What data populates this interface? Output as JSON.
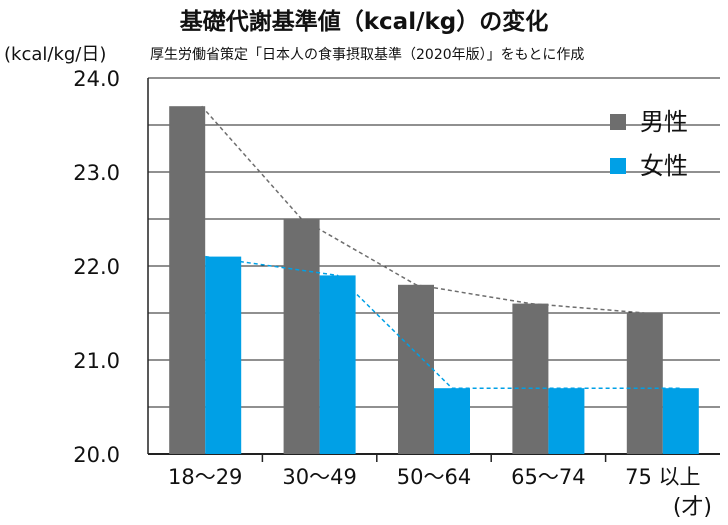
{
  "title": "基礎代謝基準値（kcal/kg）の変化",
  "source_note": "厚生労働省策定「日本人の食事摂取基準（2020年版）」をもとに作成",
  "colors": {
    "male": "#6e6e6e",
    "female": "#00a0e6",
    "grid": "#222222",
    "male_trend": "#6e6e6e",
    "female_trend": "#00a0e6"
  },
  "chart_data": {
    "type": "bar",
    "ylabel": "(kcal/kg/日)",
    "xlabel": "(才)",
    "categories": [
      "18〜29",
      "30〜49",
      "50〜64",
      "65〜74",
      "75 以上"
    ],
    "series": [
      {
        "name": "男性",
        "values": [
          23.7,
          22.5,
          21.8,
          21.6,
          21.5
        ]
      },
      {
        "name": "女性",
        "values": [
          22.1,
          21.9,
          20.7,
          20.7,
          20.7
        ]
      }
    ],
    "ylim": [
      20.0,
      24.0
    ],
    "yticks": [
      "20.0",
      "21.0",
      "22.0",
      "23.0",
      "24.0"
    ],
    "grid": true,
    "legend": "top-right",
    "trend_lines": "dashed, connecting bar tops of each series"
  }
}
